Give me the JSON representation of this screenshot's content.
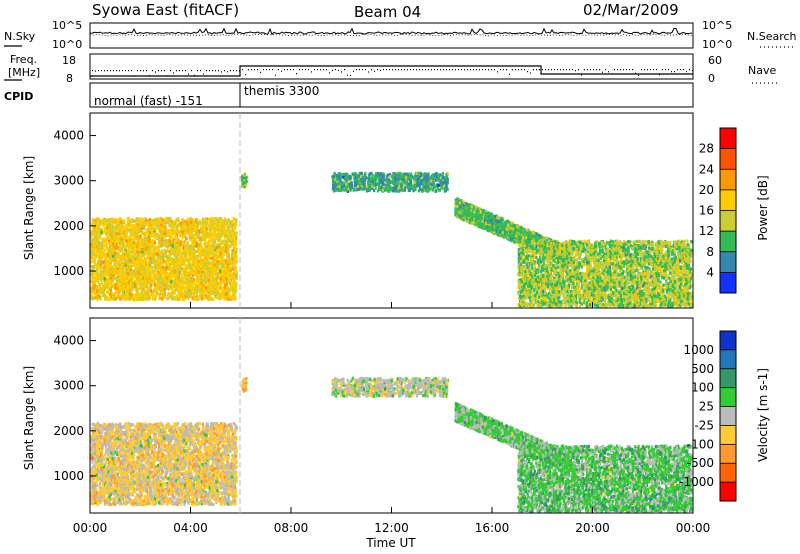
{
  "header": {
    "title": "Syowa East (fitACF)",
    "beam": "Beam 04",
    "date": "02/Mar/2009"
  },
  "strip_noise": {
    "left_label": "N.Sky",
    "right_label": "N.Search",
    "ticks_left": [
      "10^5",
      "10^0"
    ],
    "ticks_right": [
      "10^5",
      "10^0"
    ]
  },
  "strip_freq": {
    "left_label_1": "Freq.",
    "left_label_2": "[MHz]",
    "right_label": "Nave",
    "ticks_left": [
      "18",
      "8"
    ],
    "ticks_right": [
      "60",
      "0"
    ]
  },
  "cpid": {
    "label": "CPID",
    "modes": [
      "normal (fast) -151",
      "themis 3300"
    ]
  },
  "panel_power": {
    "ylabel": "Slant Range [km]",
    "yticks": [
      "4000",
      "3000",
      "2000",
      "1000"
    ],
    "colorbar_label": "Power [dB]",
    "colorbar_ticks": [
      "28",
      "24",
      "20",
      "16",
      "12",
      "8",
      "4"
    ],
    "colors": [
      "#ff0000",
      "#ff5500",
      "#ff9900",
      "#ffcc00",
      "#cccc33",
      "#33bb55",
      "#3388aa",
      "#1133ff"
    ]
  },
  "panel_velocity": {
    "ylabel": "Slant Range [km]",
    "yticks": [
      "4000",
      "3000",
      "2000",
      "1000"
    ],
    "colorbar_label": "Velocity [m s-1]",
    "colorbar_ticks": [
      "1000",
      "500",
      "100",
      "25",
      "-25",
      "-100",
      "-500",
      "-1000"
    ],
    "colors": [
      "#1133cc",
      "#2277bb",
      "#339966",
      "#33cc33",
      "#bbbbbb",
      "#ffcc33",
      "#ff9933",
      "#ff6600",
      "#ff0000"
    ]
  },
  "xaxis": {
    "label": "Time UT",
    "ticks": [
      "00:00",
      "04:00",
      "08:00",
      "12:00",
      "16:00",
      "20:00",
      "00:00"
    ]
  },
  "chart_data": [
    {
      "type": "heatmap",
      "title": "Power [dB]",
      "xlabel": "Time UT",
      "ylabel": "Slant Range [km]",
      "ylim": [
        180,
        4500
      ],
      "xlim_hours": [
        0,
        24
      ],
      "clim": [
        0,
        30
      ],
      "scatter_regions": [
        {
          "t_start": 0.0,
          "t_end": 5.8,
          "range_min": 400,
          "range_max": 2200,
          "value_mean": 16
        },
        {
          "t_start": 6.0,
          "t_end": 6.2,
          "range_min": 2900,
          "range_max": 3200,
          "value_mean": 10
        },
        {
          "t_start": 9.6,
          "t_end": 14.2,
          "range_min": 2800,
          "range_max": 3200,
          "value_mean": 8
        },
        {
          "t_start": 14.5,
          "t_end": 19.0,
          "range_min": 1400,
          "range_max": 2600,
          "value_mean": 10
        },
        {
          "t_start": 17.0,
          "t_end": 23.9,
          "range_min": 250,
          "range_max": 1700,
          "value_mean": 12
        }
      ]
    },
    {
      "type": "heatmap",
      "title": "Velocity [m s-1]",
      "xlabel": "Time UT",
      "ylabel": "Slant Range [km]",
      "ylim": [
        180,
        4500
      ],
      "xlim_hours": [
        0,
        24
      ],
      "clim": [
        -1000,
        1000
      ],
      "scatter_regions": [
        {
          "t_start": 0.0,
          "t_end": 5.8,
          "range_min": 400,
          "range_max": 2200,
          "value_mean": -150
        },
        {
          "t_start": 6.0,
          "t_end": 6.2,
          "range_min": 2900,
          "range_max": 3200,
          "value_mean": -300
        },
        {
          "t_start": 9.6,
          "t_end": 14.2,
          "range_min": 2800,
          "range_max": 3200,
          "value_mean": 0
        },
        {
          "t_start": 14.5,
          "t_end": 19.0,
          "range_min": 1400,
          "range_max": 2600,
          "value_mean": 150
        },
        {
          "t_start": 17.0,
          "t_end": 23.9,
          "range_min": 250,
          "range_max": 1700,
          "value_mean": 200
        }
      ]
    }
  ]
}
